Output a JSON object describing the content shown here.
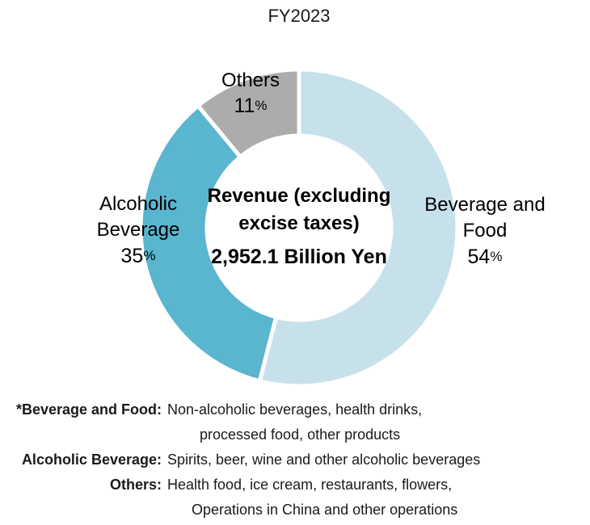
{
  "chart_data": {
    "type": "pie",
    "subtype": "donut",
    "title": "FY2023",
    "categories": [
      "Beverage and Food",
      "Alcoholic Beverage",
      "Others"
    ],
    "values": [
      54,
      35,
      11
    ],
    "unit": "%",
    "colors": [
      "#C6E1EA",
      "#5AB5CF",
      "#ACACAC"
    ],
    "gap_color": "#FFFFFF",
    "start_angle_deg": 0,
    "direction": "clockwise",
    "legend": "none",
    "center_label": {
      "line1": "Revenue (excluding",
      "line2": "excise taxes)",
      "line3": "2,952.1 Billion Yen"
    },
    "slice_labels": [
      {
        "name_line1": "Beverage and",
        "name_line2": "Food",
        "value": "54",
        "percent_sign": "%"
      },
      {
        "name_line1": "Alcoholic",
        "name_line2": "Beverage",
        "value": "35",
        "percent_sign": "%"
      },
      {
        "name_line1": "Others",
        "value": "11",
        "percent_sign": "%"
      }
    ]
  },
  "footnotes": {
    "rows": [
      {
        "label": "*Beverage and Food:",
        "text": "Non-alcoholic beverages, health drinks,"
      },
      {
        "label": "",
        "text": "processed food, other products"
      },
      {
        "label": "Alcoholic Beverage:",
        "text": "Spirits, beer, wine and other alcoholic beverages"
      },
      {
        "label": "Others:",
        "text": "Health food, ice cream, restaurants, flowers,"
      },
      {
        "label": "",
        "text": "Operations in China and other operations"
      }
    ]
  }
}
